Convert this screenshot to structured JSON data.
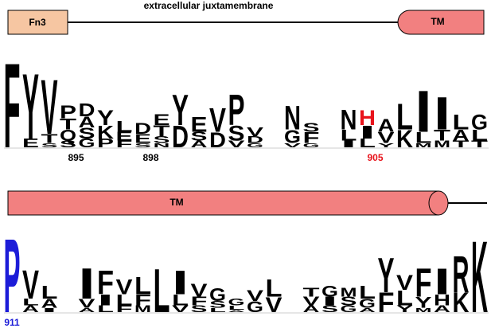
{
  "top_panel": {
    "domain_label": "Fn3",
    "region_label": "extracellular juxtamembrane",
    "tm_label": "TM"
  },
  "bottom_panel": {
    "tm_label": "TM"
  },
  "logos": [
    {
      "columns": [
        [
          {
            "letter": "F",
            "bits": 3.9
          }
        ],
        [
          {
            "letter": "Y",
            "bits": 3.0
          },
          {
            "letter": "E",
            "bits": 0.4
          }
        ],
        [
          {
            "letter": "V",
            "bits": 2.5
          },
          {
            "letter": "T",
            "bits": 0.4
          },
          {
            "letter": "S",
            "bits": 0.2
          }
        ],
        [
          {
            "letter": "P",
            "bits": 0.6
          },
          {
            "letter": "T",
            "bits": 0.5
          },
          {
            "letter": "Q",
            "bits": 0.5
          },
          {
            "letter": "S",
            "bits": 0.3
          }
        ],
        [
          {
            "letter": "D",
            "bits": 0.6
          },
          {
            "letter": "A",
            "bits": 0.5
          },
          {
            "letter": "S",
            "bits": 0.5
          },
          {
            "letter": "G",
            "bits": 0.4
          }
        ],
        [
          {
            "letter": "Y",
            "bits": 0.7
          },
          {
            "letter": "K",
            "bits": 0.6
          },
          {
            "letter": "P",
            "bits": 0.4
          }
        ],
        [
          {
            "letter": "L",
            "bits": 0.5
          },
          {
            "letter": "E",
            "bits": 0.4
          },
          {
            "letter": "F",
            "bits": 0.3
          }
        ],
        [
          {
            "letter": "D",
            "bits": 0.5
          },
          {
            "letter": "E",
            "bits": 0.4
          },
          {
            "letter": "S",
            "bits": 0.2
          }
        ],
        [
          {
            "letter": "E",
            "bits": 0.5
          },
          {
            "letter": "T",
            "bits": 0.5
          },
          {
            "letter": "S",
            "bits": 0.3
          },
          {
            "letter": "N",
            "bits": 0.2
          }
        ],
        [
          {
            "letter": "Y",
            "bits": 1.4
          },
          {
            "letter": "D",
            "bits": 1.0
          }
        ],
        [
          {
            "letter": "E",
            "bits": 0.7
          },
          {
            "letter": "S",
            "bits": 0.4
          },
          {
            "letter": "A",
            "bits": 0.3
          }
        ],
        [
          {
            "letter": "V",
            "bits": 1.1
          },
          {
            "letter": "D",
            "bits": 0.7
          }
        ],
        [
          {
            "letter": "P",
            "bits": 1.4
          },
          {
            "letter": "S",
            "bits": 0.7
          },
          {
            "letter": "V",
            "bits": 0.3
          }
        ],
        [
          {
            "letter": "V",
            "bits": 0.4
          },
          {
            "letter": "D",
            "bits": 0.3
          },
          {
            "letter": "G",
            "bits": 0.2
          }
        ],
        [],
        [
          {
            "letter": "N",
            "bits": 1.1
          },
          {
            "letter": "G",
            "bits": 0.6
          },
          {
            "letter": "V",
            "bits": 0.2
          }
        ],
        [
          {
            "letter": "S",
            "bits": 0.4
          },
          {
            "letter": "F",
            "bits": 0.5
          },
          {
            "letter": "G",
            "bits": 0.2
          }
        ],
        [],
        [
          {
            "letter": "N",
            "bits": 0.9
          },
          {
            "letter": "L",
            "bits": 0.5
          },
          {
            "letter": "I",
            "bits": 0.3
          }
        ],
        [
          {
            "letter": "H",
            "bits": 0.7,
            "color": "#e8141c"
          },
          {
            "letter": "I",
            "bits": 0.6
          },
          {
            "letter": "L",
            "bits": 0.4
          }
        ],
        [
          {
            "letter": "A",
            "bits": 0.6
          },
          {
            "letter": "V",
            "bits": 0.5
          },
          {
            "letter": "Y",
            "bits": 0.2
          }
        ],
        [
          {
            "letter": "L",
            "bits": 1.2
          },
          {
            "letter": "K",
            "bits": 0.8
          }
        ],
        [
          {
            "letter": "I",
            "bits": 1.9
          },
          {
            "letter": "L",
            "bits": 0.5
          },
          {
            "letter": "M",
            "bits": 0.2
          }
        ],
        [
          {
            "letter": "I",
            "bits": 1.5
          },
          {
            "letter": "T",
            "bits": 0.5
          },
          {
            "letter": "M",
            "bits": 0.3
          }
        ],
        [
          {
            "letter": "L",
            "bits": 0.7
          },
          {
            "letter": "A",
            "bits": 0.5
          },
          {
            "letter": "T",
            "bits": 0.3
          }
        ],
        [
          {
            "letter": "G",
            "bits": 0.7
          },
          {
            "letter": "L",
            "bits": 0.5
          },
          {
            "letter": "T",
            "bits": 0.3
          }
        ]
      ],
      "position_labels": [
        {
          "column": 3,
          "label": "895"
        },
        {
          "column": 7,
          "label": "898"
        },
        {
          "column": 19,
          "label": "905",
          "color": "#e8141c"
        }
      ]
    },
    {
      "columns": [
        [
          {
            "letter": "P",
            "bits": 3.4,
            "color": "#1c1cd8"
          }
        ],
        [
          {
            "letter": "V",
            "bits": 1.3
          },
          {
            "letter": "L",
            "bits": 0.3
          },
          {
            "letter": "A",
            "bits": 0.3
          }
        ],
        [
          {
            "letter": "L",
            "bits": 0.6
          },
          {
            "letter": "A",
            "bits": 0.4
          },
          {
            "letter": "I",
            "bits": 0.2
          }
        ],
        [],
        [
          {
            "letter": "I",
            "bits": 1.4
          },
          {
            "letter": "V",
            "bits": 0.4
          },
          {
            "letter": "A",
            "bits": 0.2
          }
        ],
        [
          {
            "letter": "F",
            "bits": 1.1
          },
          {
            "letter": "I",
            "bits": 0.5
          },
          {
            "letter": "L",
            "bits": 0.3
          }
        ],
        [
          {
            "letter": "V",
            "bits": 0.7
          },
          {
            "letter": "L",
            "bits": 0.5
          },
          {
            "letter": "F",
            "bits": 0.3
          }
        ],
        [
          {
            "letter": "L",
            "bits": 0.8
          },
          {
            "letter": "F",
            "bits": 0.5
          },
          {
            "letter": "M",
            "bits": 0.3
          }
        ],
        [
          {
            "letter": "L",
            "bits": 2.0
          }
        ],
        [
          {
            "letter": "I",
            "bits": 1.1
          },
          {
            "letter": "L",
            "bits": 0.5
          },
          {
            "letter": "V",
            "bits": 0.3
          }
        ],
        [
          {
            "letter": "V",
            "bits": 0.6
          },
          {
            "letter": "F",
            "bits": 0.4
          },
          {
            "letter": "S",
            "bits": 0.3
          }
        ],
        [
          {
            "letter": "G",
            "bits": 0.6
          },
          {
            "letter": "S",
            "bits": 0.3
          },
          {
            "letter": "L",
            "bits": 0.2
          }
        ],
        [
          {
            "letter": "G",
            "bits": 0.3
          },
          {
            "letter": "L",
            "bits": 0.2
          },
          {
            "letter": "A",
            "bits": 0.1
          }
        ],
        [
          {
            "letter": "V",
            "bits": 0.5
          },
          {
            "letter": "G",
            "bits": 0.5
          }
        ],
        [
          {
            "letter": "L",
            "bits": 0.8
          },
          {
            "letter": "V",
            "bits": 0.7
          }
        ],
        [],
        [
          {
            "letter": "T",
            "bits": 0.4
          },
          {
            "letter": "V",
            "bits": 0.4
          },
          {
            "letter": "A",
            "bits": 0.3
          }
        ],
        [
          {
            "letter": "G",
            "bits": 0.5
          },
          {
            "letter": "I",
            "bits": 0.4
          },
          {
            "letter": "S",
            "bits": 0.3
          }
        ],
        [
          {
            "letter": "M",
            "bits": 0.4
          },
          {
            "letter": "S",
            "bits": 0.4
          },
          {
            "letter": "G",
            "bits": 0.3
          }
        ],
        [
          {
            "letter": "L",
            "bits": 0.6
          },
          {
            "letter": "G",
            "bits": 0.4
          },
          {
            "letter": "A",
            "bits": 0.2
          }
        ],
        [
          {
            "letter": "Y",
            "bits": 1.6
          },
          {
            "letter": "F",
            "bits": 0.9
          }
        ],
        [
          {
            "letter": "V",
            "bits": 0.7
          },
          {
            "letter": "L",
            "bits": 0.7
          },
          {
            "letter": "Y",
            "bits": 0.3
          }
        ],
        [
          {
            "letter": "F",
            "bits": 1.3
          },
          {
            "letter": "Y",
            "bits": 0.5
          },
          {
            "letter": "M",
            "bits": 0.2
          }
        ],
        [
          {
            "letter": "I",
            "bits": 1.2
          },
          {
            "letter": "H",
            "bits": 0.5
          },
          {
            "letter": "A",
            "bits": 0.3
          }
        ],
        [
          {
            "letter": "R",
            "bits": 1.7
          },
          {
            "letter": "K",
            "bits": 0.9
          }
        ],
        [
          {
            "letter": "K",
            "bits": 3.3
          }
        ]
      ],
      "position_labels": [
        {
          "column": 0,
          "label": "911",
          "color": "#1c1cd8"
        }
      ]
    }
  ]
}
